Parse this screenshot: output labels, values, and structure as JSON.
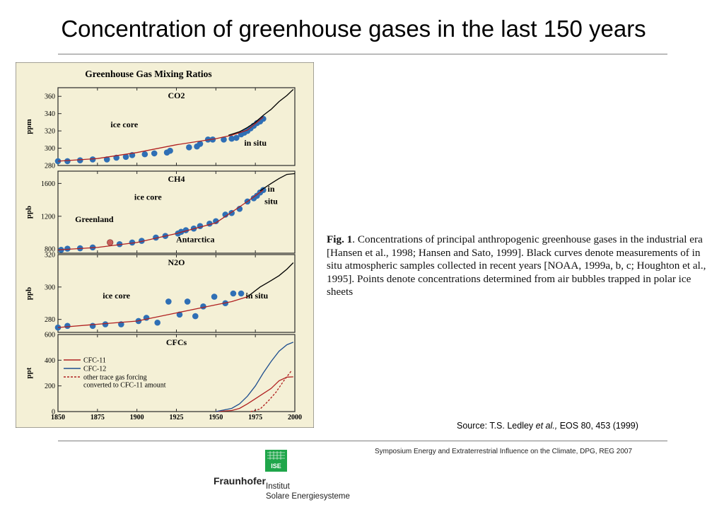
{
  "slide": {
    "title": "Concentration of greenhouse gases in the last 150 years",
    "caption_prefix": "Fig. 1",
    "caption_body": ". Concentrations of principal anthropogenic greenhouse gases in the industrial era [Hansen et al., 1998; Hansen and Sato, 1999]. Black curves denote measurements of in situ atmospheric samples collected in recent years [NOAA, 1999a, b, c; Houghton et al., 1995]. Points denote concentrations determined from air bubbles trapped in polar ice sheets",
    "source_prefix": "Source: T.S. Ledley",
    "source_italic": "et al.,",
    "source_suffix": " EOS 80, 453 (1999)",
    "footer_note": "Symposium Energy and Extraterrestrial Influence on the Climate, DPG, REG 2007",
    "logo_box_text": "ISE",
    "logo_name": "Fraunhofer",
    "logo_line1": "Institut",
    "logo_line2": "Solare Energiesysteme"
  },
  "colors": {
    "figure_bg": "#f4f0d6",
    "frame": "#2a2a2a",
    "points": "#2f6fb5",
    "fit": "#b02020",
    "in_situ": "#000000",
    "cfc12": "#1f4f8f",
    "logo": "#1fa64a"
  },
  "chart_data": {
    "title": "Greenhouse Gas Mixing Ratios",
    "xlim": [
      1850,
      2000
    ],
    "x_ticks": [
      1850,
      1875,
      1900,
      1925,
      1950,
      1975,
      2000
    ],
    "panels": [
      {
        "type": "scatter",
        "title": "CO2",
        "ylabel": "ppm",
        "ylim": [
          280,
          370
        ],
        "y_ticks": [
          280,
          300,
          320,
          340,
          360
        ],
        "annotations": [
          {
            "text": "ice core",
            "x": 1892,
            "y": 324
          },
          {
            "text": "in situ",
            "x": 1975,
            "y": 303
          }
        ],
        "series": [
          {
            "name": "ice core",
            "kind": "points",
            "x": [
              1850,
              1856,
              1864,
              1872,
              1881,
              1887,
              1893,
              1897,
              1905,
              1911,
              1919,
              1921,
              1933,
              1938,
              1940,
              1945,
              1948,
              1955,
              1960,
              1963,
              1966,
              1968,
              1970,
              1972,
              1974,
              1976,
              1978,
              1980
            ],
            "y": [
              285,
              285,
              286,
              287,
              287,
              289,
              290,
              292,
              293,
              294,
              295,
              297,
              301,
              302,
              305,
              310,
              310,
              310,
              311,
              312,
              316,
              318,
              320,
              323,
              326,
              329,
              331,
              334
            ]
          },
          {
            "name": "fit",
            "kind": "line",
            "x": [
              1850,
              1875,
              1900,
              1925,
              1950,
              1960,
              1970,
              1980
            ],
            "y": [
              285,
              288,
              295,
              304,
              311,
              315,
              321,
              336
            ]
          },
          {
            "name": "in situ",
            "kind": "line",
            "x": [
              1958,
              1965,
              1970,
              1975,
              1980,
              1985,
              1990,
              1995,
              1999
            ],
            "y": [
              315,
              319,
              324,
              330,
              338,
              345,
              354,
              361,
              368
            ]
          }
        ]
      },
      {
        "type": "scatter",
        "title": "CH4",
        "ylabel": "ppb",
        "ylim": [
          750,
          1750
        ],
        "y_ticks": [
          800,
          1200,
          1600
        ],
        "annotations": [
          {
            "text": "ice core",
            "x": 1907,
            "y": 1400
          },
          {
            "text": "Greenland",
            "x": 1873,
            "y": 1130
          },
          {
            "text": "Antarctica",
            "x": 1937,
            "y": 885
          },
          {
            "text": "in",
            "x": 1985,
            "y": 1500
          },
          {
            "text": "situ",
            "x": 1985,
            "y": 1350
          }
        ],
        "highlight_point": {
          "x": 1883,
          "y": 880
        },
        "series": [
          {
            "name": "ice core",
            "kind": "points",
            "x": [
              1852,
              1856,
              1864,
              1872,
              1883,
              1889,
              1897,
              1903,
              1912,
              1918,
              1926,
              1928,
              1931,
              1936,
              1940,
              1946,
              1950,
              1956,
              1960,
              1965,
              1970,
              1974,
              1976,
              1978,
              1980
            ],
            "y": [
              790,
              805,
              810,
              820,
              880,
              860,
              880,
              900,
              940,
              960,
              990,
              1010,
              1030,
              1050,
              1080,
              1110,
              1140,
              1220,
              1240,
              1290,
              1380,
              1420,
              1450,
              1490,
              1520
            ]
          },
          {
            "name": "fit",
            "kind": "line",
            "x": [
              1850,
              1875,
              1900,
              1925,
              1950,
              1960,
              1970,
              1980
            ],
            "y": [
              790,
              820,
              880,
              990,
              1120,
              1250,
              1380,
              1520
            ]
          },
          {
            "name": "in situ",
            "kind": "line",
            "x": [
              1978,
              1985,
              1990,
              1995,
              2000
            ],
            "y": [
              1510,
              1600,
              1660,
              1710,
              1720
            ]
          }
        ]
      },
      {
        "type": "scatter",
        "title": "N2O",
        "ylabel": "ppb",
        "ylim": [
          272,
          320
        ],
        "y_ticks": [
          280,
          300,
          320
        ],
        "annotations": [
          {
            "text": "ice core",
            "x": 1887,
            "y": 293
          },
          {
            "text": "in situ",
            "x": 1976,
            "y": 293
          }
        ],
        "series": [
          {
            "name": "ice core",
            "kind": "points",
            "x": [
              1850,
              1856,
              1872,
              1880,
              1890,
              1901,
              1906,
              1913,
              1920,
              1927,
              1932,
              1937,
              1942,
              1949,
              1956,
              1961,
              1966
            ],
            "y": [
              275,
              276,
              276,
              277,
              277,
              279,
              281,
              278,
              291,
              283,
              291,
              282,
              288,
              294,
              290,
              296,
              296
            ]
          },
          {
            "name": "fit",
            "kind": "line",
            "x": [
              1850,
              1875,
              1900,
              1925,
              1950,
              1960,
              1970
            ],
            "y": [
              275,
              277,
              279,
              284,
              289,
              291,
              294
            ]
          },
          {
            "name": "in situ",
            "kind": "line",
            "x": [
              1970,
              1978,
              1985,
              1990,
              1995,
              1999
            ],
            "y": [
              294,
              300,
              304,
              307,
              311,
              315
            ]
          }
        ]
      },
      {
        "type": "line",
        "title": "CFCs",
        "ylabel": "ppt",
        "ylim": [
          0,
          600
        ],
        "y_ticks": [
          0,
          200,
          400,
          600
        ],
        "series": [
          {
            "name": "CFC-11",
            "kind": "line",
            "x": [
              1950,
              1960,
              1965,
              1970,
              1975,
              1980,
              1985,
              1990,
              1995,
              1999
            ],
            "y": [
              0,
              8,
              25,
              60,
              100,
              140,
              180,
              240,
              268,
              270
            ]
          },
          {
            "name": "CFC-12",
            "kind": "line",
            "x": [
              1950,
              1960,
              1965,
              1970,
              1975,
              1980,
              1985,
              1990,
              1995,
              1999
            ],
            "y": [
              0,
              25,
              60,
              120,
              200,
              300,
              390,
              470,
              520,
              540
            ]
          },
          {
            "name": "other trace gas forcing converted to CFC-11 amount",
            "kind": "dashed",
            "x": [
              1972,
              1978,
              1983,
              1988,
              1993,
              1998
            ],
            "y": [
              0,
              20,
              80,
              150,
              240,
              320
            ]
          }
        ]
      }
    ]
  }
}
